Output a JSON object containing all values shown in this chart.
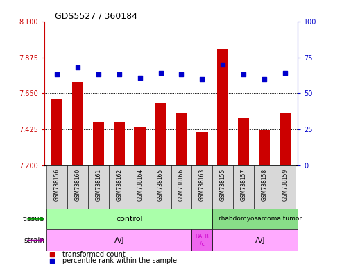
{
  "title": "GDS5527 / 360184",
  "samples": [
    "GSM738156",
    "GSM738160",
    "GSM738161",
    "GSM738162",
    "GSM738164",
    "GSM738165",
    "GSM738166",
    "GSM738163",
    "GSM738155",
    "GSM738157",
    "GSM738158",
    "GSM738159"
  ],
  "bar_values": [
    7.615,
    7.72,
    7.47,
    7.47,
    7.44,
    7.59,
    7.53,
    7.41,
    7.93,
    7.5,
    7.42,
    7.53
  ],
  "dot_values": [
    63,
    68,
    63,
    63,
    61,
    64,
    63,
    60,
    70,
    63,
    60,
    64
  ],
  "ylim_left": [
    7.2,
    8.1
  ],
  "ylim_right": [
    0,
    100
  ],
  "yticks_left": [
    7.2,
    7.425,
    7.65,
    7.875,
    8.1
  ],
  "yticks_right": [
    0,
    25,
    50,
    75,
    100
  ],
  "bar_color": "#cc0000",
  "dot_color": "#0000cc",
  "bar_base": 7.2,
  "control_color": "#aaffaa",
  "tumor_color": "#88dd88",
  "strain_aj_color": "#ffaaff",
  "strain_balb_color": "#ee66ee",
  "tissue_arrow_color": "#009900",
  "strain_arrow_color": "#990099",
  "legend_items": [
    {
      "label": "transformed count",
      "color": "#cc0000"
    },
    {
      "label": "percentile rank within the sample",
      "color": "#0000cc"
    }
  ]
}
